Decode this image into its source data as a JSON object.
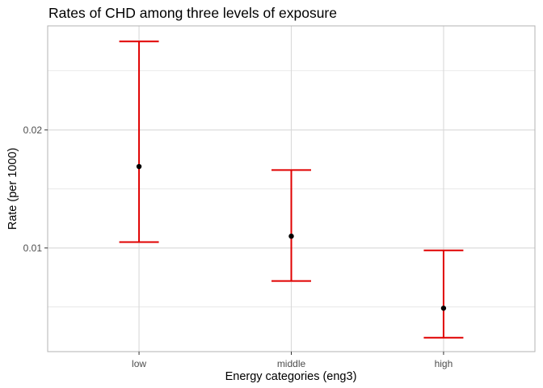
{
  "chart_data": {
    "type": "errorbar",
    "title": "Rates of CHD among three levels of exposure",
    "xlabel": "Energy categories (eng3)",
    "ylabel": "Rate (per 1000)",
    "categories": [
      "low",
      "middle",
      "high"
    ],
    "points": [
      {
        "category": "low",
        "y": 0.0169,
        "lower": 0.0105,
        "upper": 0.0275
      },
      {
        "category": "middle",
        "y": 0.011,
        "lower": 0.0072,
        "upper": 0.0166
      },
      {
        "category": "high",
        "y": 0.0049,
        "lower": 0.0024,
        "upper": 0.0098
      }
    ],
    "y_ticks": [
      0.01,
      0.02
    ],
    "y_tick_labels": [
      "0.01",
      "0.02"
    ],
    "ylim": [
      0.00122,
      0.02882
    ],
    "grid": true,
    "colors": {
      "errorbar": "#e00000",
      "point": "#000000",
      "grid": "#d9d9d9",
      "panel_border": "#b3b3b3"
    }
  }
}
